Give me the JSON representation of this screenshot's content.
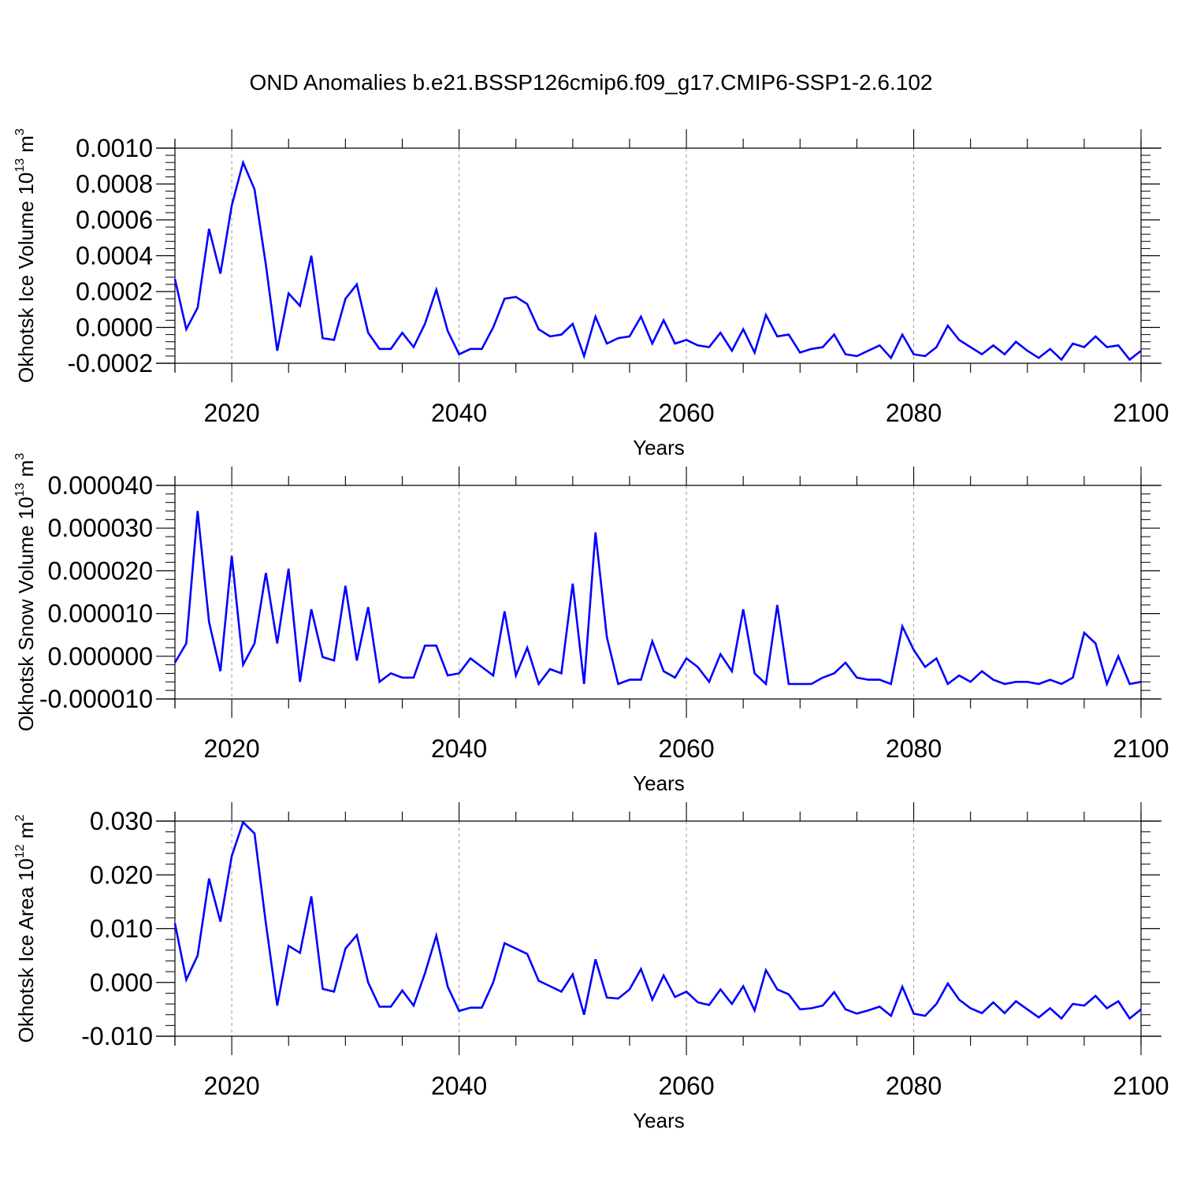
{
  "title": "OND Anomalies b.e21.BSSP126cmip6.f09_g17.CMIP6-SSP1-2.6.102",
  "colors": {
    "line": "#0000ff",
    "axis": "#000000",
    "grid": "#999999"
  },
  "chart_data": [
    {
      "type": "line",
      "ylabel": {
        "text": "Okhotsk Ice Volume 10",
        "sup": "13",
        "unit": "m",
        "unit_sup": "3"
      },
      "xlabel": "Years",
      "xlim": [
        2015,
        2100
      ],
      "ylim": [
        -0.0002,
        0.001
      ],
      "ytick_values": [
        -0.0002,
        0.0,
        0.0002,
        0.0004,
        0.0006,
        0.0008,
        0.001
      ],
      "ytick_labels": [
        "-0.0002",
        "0.0000",
        "0.0002",
        "0.0004",
        "0.0006",
        "0.0008",
        "0.0010"
      ],
      "xtick_values": [
        2020,
        2040,
        2060,
        2080,
        2100
      ],
      "xtick_labels": [
        "2020",
        "2040",
        "2060",
        "2080",
        "2100"
      ],
      "x": [
        2015,
        2016,
        2017,
        2018,
        2019,
        2020,
        2021,
        2022,
        2023,
        2024,
        2025,
        2026,
        2027,
        2028,
        2029,
        2030,
        2031,
        2032,
        2033,
        2034,
        2035,
        2036,
        2037,
        2038,
        2039,
        2040,
        2041,
        2042,
        2043,
        2044,
        2045,
        2046,
        2047,
        2048,
        2049,
        2050,
        2051,
        2052,
        2053,
        2054,
        2055,
        2056,
        2057,
        2058,
        2059,
        2060,
        2061,
        2062,
        2063,
        2064,
        2065,
        2066,
        2067,
        2068,
        2069,
        2070,
        2071,
        2072,
        2073,
        2074,
        2075,
        2076,
        2077,
        2078,
        2079,
        2080,
        2081,
        2082,
        2083,
        2084,
        2085,
        2086,
        2087,
        2088,
        2089,
        2090,
        2091,
        2092,
        2093,
        2094,
        2095,
        2096,
        2097,
        2098,
        2099,
        2100
      ],
      "series": [
        {
          "values": [
            0.00027,
            -1e-05,
            0.00011,
            0.00055,
            0.0003,
            0.00068,
            0.00092,
            0.00077,
            0.00035,
            -0.00013,
            0.00019,
            0.00012,
            0.0004,
            -6e-05,
            -7e-05,
            0.00016,
            0.00024,
            -3e-05,
            -0.00012,
            -0.00012,
            -3e-05,
            -0.00011,
            2e-05,
            0.00021,
            -2e-05,
            -0.00015,
            -0.00012,
            -0.00012,
            0.0,
            0.00016,
            0.00017,
            0.00013,
            -1e-05,
            -5e-05,
            -4e-05,
            2e-05,
            -0.00016,
            6e-05,
            -9e-05,
            -6e-05,
            -5e-05,
            6e-05,
            -9e-05,
            4e-05,
            -9e-05,
            -7e-05,
            -0.0001,
            -0.00011,
            -3e-05,
            -0.00013,
            -1e-05,
            -0.00014,
            7e-05,
            -5e-05,
            -4e-05,
            -0.00014,
            -0.00012,
            -0.00011,
            -4e-05,
            -0.00015,
            -0.00016,
            -0.00013,
            -0.0001,
            -0.00017,
            -4e-05,
            -0.00015,
            -0.00016,
            -0.00011,
            1e-05,
            -7e-05,
            -0.00011,
            -0.00015,
            -0.0001,
            -0.00015,
            -8e-05,
            -0.00013,
            -0.00017,
            -0.00012,
            -0.00018,
            -9e-05,
            -0.00011,
            -5e-05,
            -0.00011,
            -0.0001,
            -0.00018,
            -0.00013
          ]
        }
      ]
    },
    {
      "type": "line",
      "ylabel": {
        "text": "Okhotsk Snow Volume 10",
        "sup": "13",
        "unit": "m",
        "unit_sup": "3"
      },
      "xlabel": "Years",
      "xlim": [
        2015,
        2100
      ],
      "ylim": [
        -1e-05,
        4e-05
      ],
      "ytick_values": [
        -1e-05,
        0.0,
        1e-05,
        2e-05,
        3e-05,
        4e-05
      ],
      "ytick_labels": [
        "-0.000010",
        "0.000000",
        "0.000010",
        "0.000020",
        "0.000030",
        "0.000040"
      ],
      "xtick_values": [
        2020,
        2040,
        2060,
        2080,
        2100
      ],
      "xtick_labels": [
        "2020",
        "2040",
        "2060",
        "2080",
        "2100"
      ],
      "x": [
        2015,
        2016,
        2017,
        2018,
        2019,
        2020,
        2021,
        2022,
        2023,
        2024,
        2025,
        2026,
        2027,
        2028,
        2029,
        2030,
        2031,
        2032,
        2033,
        2034,
        2035,
        2036,
        2037,
        2038,
        2039,
        2040,
        2041,
        2042,
        2043,
        2044,
        2045,
        2046,
        2047,
        2048,
        2049,
        2050,
        2051,
        2052,
        2053,
        2054,
        2055,
        2056,
        2057,
        2058,
        2059,
        2060,
        2061,
        2062,
        2063,
        2064,
        2065,
        2066,
        2067,
        2068,
        2069,
        2070,
        2071,
        2072,
        2073,
        2074,
        2075,
        2076,
        2077,
        2078,
        2079,
        2080,
        2081,
        2082,
        2083,
        2084,
        2085,
        2086,
        2087,
        2088,
        2089,
        2090,
        2091,
        2092,
        2093,
        2094,
        2095,
        2096,
        2097,
        2098,
        2099,
        2100
      ],
      "series": [
        {
          "values": [
            -1.5e-06,
            3e-06,
            3.4e-05,
            8e-06,
            -3.5e-06,
            2.35e-05,
            -2e-06,
            3e-06,
            1.95e-05,
            3e-06,
            2.05e-05,
            -6e-06,
            1.1e-05,
            -2e-07,
            -1e-06,
            1.65e-05,
            -1e-06,
            1.15e-05,
            -6e-06,
            -4e-06,
            -5e-06,
            -5e-06,
            2.5e-06,
            2.5e-06,
            -4.5e-06,
            -4e-06,
            -5e-07,
            -2.5e-06,
            -4.5e-06,
            1.05e-05,
            -4.5e-06,
            2e-06,
            -6.5e-06,
            -3e-06,
            -4e-06,
            1.7e-05,
            -6.5e-06,
            2.9e-05,
            4.5e-06,
            -6.5e-06,
            -5.5e-06,
            -5.5e-06,
            3.5e-06,
            -3.5e-06,
            -5e-06,
            -5e-07,
            -2.5e-06,
            -6e-06,
            5e-07,
            -3.5e-06,
            1.1e-05,
            -4e-06,
            -6.5e-06,
            1.2e-05,
            -6.5e-06,
            -6.5e-06,
            -6.5e-06,
            -5e-06,
            -4e-06,
            -1.5e-06,
            -5e-06,
            -5.5e-06,
            -5.5e-06,
            -6.5e-06,
            7e-06,
            1.5e-06,
            -2.5e-06,
            -5e-07,
            -6.5e-06,
            -4.5e-06,
            -6e-06,
            -3.5e-06,
            -5.5e-06,
            -6.5e-06,
            -6e-06,
            -6e-06,
            -6.5e-06,
            -5.5e-06,
            -6.5e-06,
            -5e-06,
            5.5e-06,
            3e-06,
            -6.5e-06,
            0.0,
            -6.5e-06,
            -6e-06
          ]
        }
      ]
    },
    {
      "type": "line",
      "ylabel": {
        "text": "Okhotsk Ice Area 10",
        "sup": "12",
        "unit": "m",
        "unit_sup": "2"
      },
      "xlabel": "Years",
      "xlim": [
        2015,
        2100
      ],
      "ylim": [
        -0.01,
        0.03
      ],
      "ytick_values": [
        -0.01,
        0.0,
        0.01,
        0.02,
        0.03
      ],
      "ytick_labels": [
        "-0.010",
        "0.000",
        "0.010",
        "0.020",
        "0.030"
      ],
      "xtick_values": [
        2020,
        2040,
        2060,
        2080,
        2100
      ],
      "xtick_labels": [
        "2020",
        "2040",
        "2060",
        "2080",
        "2100"
      ],
      "x": [
        2015,
        2016,
        2017,
        2018,
        2019,
        2020,
        2021,
        2022,
        2023,
        2024,
        2025,
        2026,
        2027,
        2028,
        2029,
        2030,
        2031,
        2032,
        2033,
        2034,
        2035,
        2036,
        2037,
        2038,
        2039,
        2040,
        2041,
        2042,
        2043,
        2044,
        2045,
        2046,
        2047,
        2048,
        2049,
        2050,
        2051,
        2052,
        2053,
        2054,
        2055,
        2056,
        2057,
        2058,
        2059,
        2060,
        2061,
        2062,
        2063,
        2064,
        2065,
        2066,
        2067,
        2068,
        2069,
        2070,
        2071,
        2072,
        2073,
        2074,
        2075,
        2076,
        2077,
        2078,
        2079,
        2080,
        2081,
        2082,
        2083,
        2084,
        2085,
        2086,
        2087,
        2088,
        2089,
        2090,
        2091,
        2092,
        2093,
        2094,
        2095,
        2096,
        2097,
        2098,
        2099,
        2100
      ],
      "series": [
        {
          "values": [
            0.011,
            0.0005,
            0.005,
            0.0193,
            0.0113,
            0.0235,
            0.0298,
            0.0277,
            0.011,
            -0.0043,
            0.0068,
            0.0055,
            0.016,
            -0.0012,
            -0.0017,
            0.0063,
            0.0088,
            0.0,
            -0.0045,
            -0.0045,
            -0.0015,
            -0.0043,
            0.0017,
            0.0087,
            -0.0008,
            -0.0053,
            -0.0047,
            -0.0047,
            0.0,
            0.0073,
            0.0063,
            0.0053,
            0.0003,
            -0.0007,
            -0.0017,
            0.0015,
            -0.006,
            0.0043,
            -0.0028,
            -0.003,
            -0.0013,
            0.0025,
            -0.0032,
            0.0013,
            -0.0027,
            -0.0017,
            -0.0037,
            -0.0042,
            -0.0013,
            -0.004,
            -0.0007,
            -0.0052,
            0.0023,
            -0.0013,
            -0.0022,
            -0.005,
            -0.0048,
            -0.0043,
            -0.0018,
            -0.005,
            -0.0058,
            -0.0052,
            -0.0045,
            -0.0062,
            -0.0008,
            -0.0058,
            -0.0062,
            -0.004,
            -0.0002,
            -0.0032,
            -0.0048,
            -0.0057,
            -0.0037,
            -0.0057,
            -0.0035,
            -0.005,
            -0.0065,
            -0.0048,
            -0.0067,
            -0.004,
            -0.0043,
            -0.0025,
            -0.0048,
            -0.0035,
            -0.0067,
            -0.005
          ]
        }
      ]
    }
  ]
}
